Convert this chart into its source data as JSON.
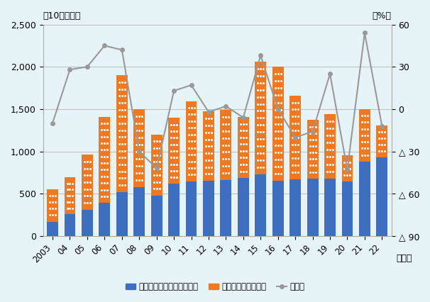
{
  "years": [
    "2003",
    "04",
    "05",
    "06",
    "07",
    "08",
    "09",
    "10",
    "11",
    "12",
    "13",
    "14",
    "15",
    "16",
    "17",
    "18",
    "19",
    "20",
    "21",
    "22"
  ],
  "emerging": [
    170,
    255,
    310,
    390,
    520,
    580,
    478,
    615,
    645,
    650,
    660,
    685,
    730,
    650,
    670,
    680,
    680,
    640,
    880,
    930
  ],
  "developed": [
    385,
    440,
    650,
    1020,
    1380,
    920,
    720,
    780,
    950,
    820,
    830,
    720,
    1330,
    1350,
    990,
    690,
    760,
    310,
    620,
    380
  ],
  "growth_rate": [
    -10,
    28,
    30,
    45,
    42,
    -30,
    -42,
    13,
    17,
    -2,
    2,
    -6,
    38,
    0,
    -20,
    -16,
    25,
    -43,
    54,
    -12
  ],
  "bar_color_emerging": "#3d6ebf",
  "bar_color_developed": "#f07820",
  "line_color": "#999999",
  "background_color": "#e6f4f8",
  "title_left": "（10億ドル）",
  "title_right": "（%）",
  "year_label": "（年）",
  "legend": [
    "新興・途上国向け直接投賄",
    "先進国向け直接投賄",
    "伸び率"
  ],
  "ylim_left": [
    0,
    2500
  ],
  "ylim_right": [
    -90,
    60
  ],
  "yticks_left": [
    0,
    500,
    1000,
    1500,
    2000,
    2500
  ],
  "yticks_right": [
    -90,
    -60,
    -30,
    0,
    30,
    60
  ],
  "ytick_labels_right": [
    "△ 90",
    "△ 60",
    "△ 30",
    "0",
    "30",
    "60"
  ]
}
